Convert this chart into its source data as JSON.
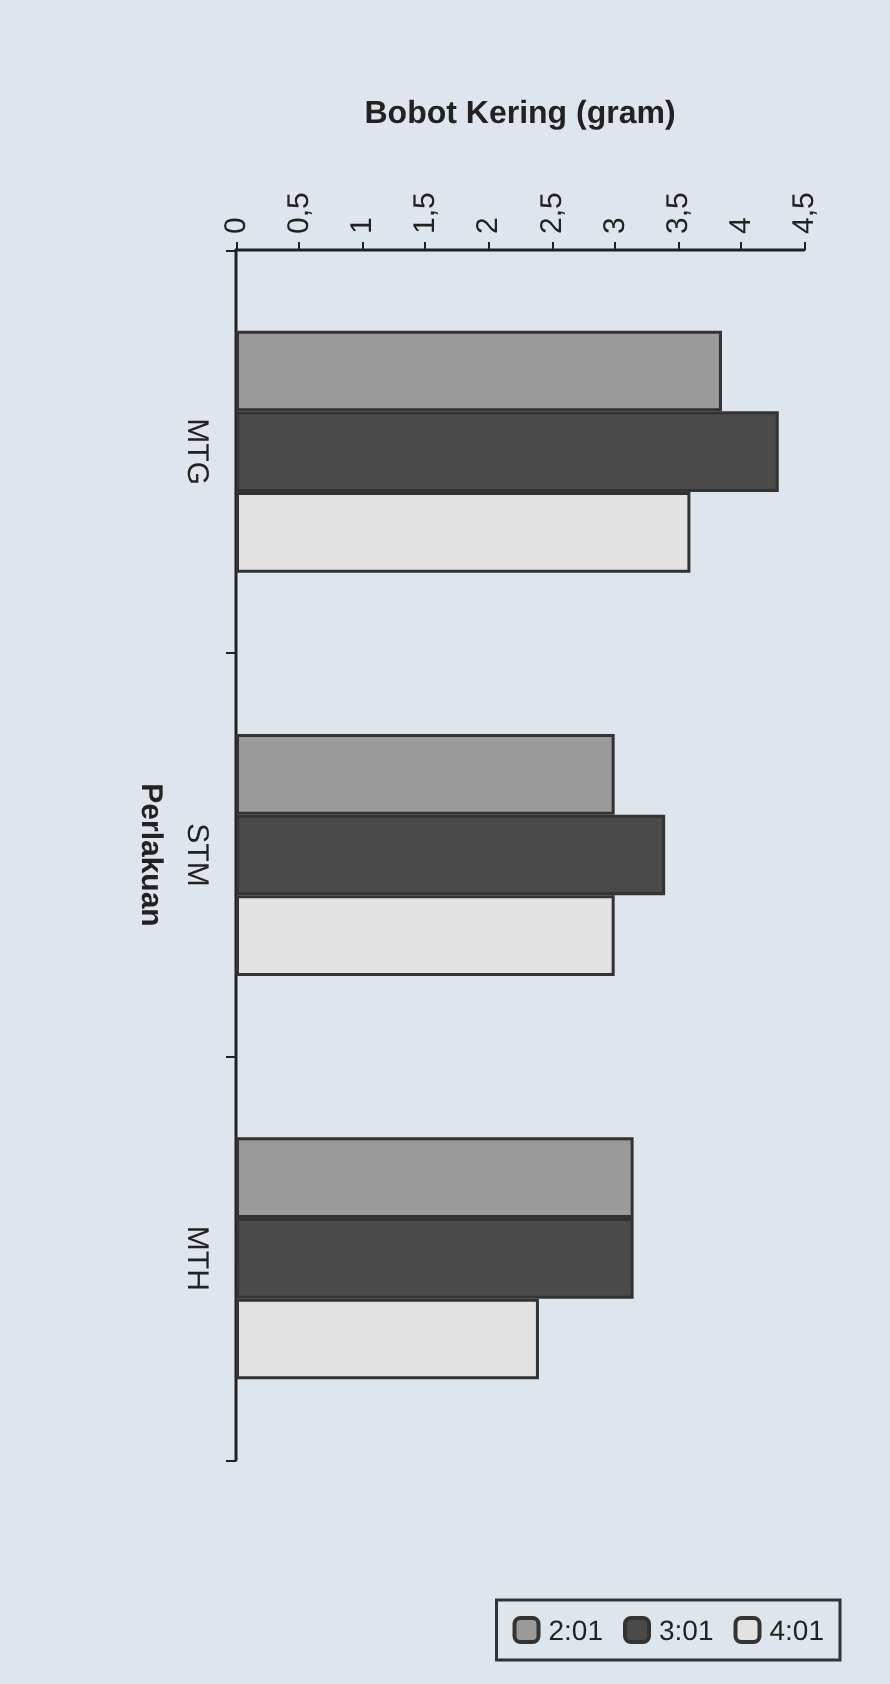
{
  "chart_data": {
    "type": "bar",
    "orientation": "horizontal",
    "xlabel": "Bobot Kering (gram)",
    "ylabel": "Perlakuan",
    "categories": [
      "MTG",
      "STM",
      "MTH"
    ],
    "series": [
      {
        "name": "2:01",
        "color": "#9a9a9a",
        "values": [
          3.85,
          3.0,
          3.15
        ]
      },
      {
        "name": "3:01",
        "color": "#4a4a4a",
        "values": [
          4.3,
          3.4,
          3.15
        ]
      },
      {
        "name": "4:01",
        "color": "#e2e2e2",
        "values": [
          3.6,
          3.0,
          2.4
        ]
      }
    ],
    "xlim": [
      0,
      4.5
    ],
    "xticks": [
      0,
      {
        "value": 0.5,
        "label": "0,5"
      },
      1,
      {
        "value": 1.5,
        "label": "1,5"
      },
      2,
      {
        "value": 2.5,
        "label": "2,5"
      },
      3,
      {
        "value": 3.5,
        "label": "3,5"
      },
      4,
      {
        "value": 4.5,
        "label": "4,5"
      }
    ],
    "grid": false,
    "legend": "bottom right"
  }
}
